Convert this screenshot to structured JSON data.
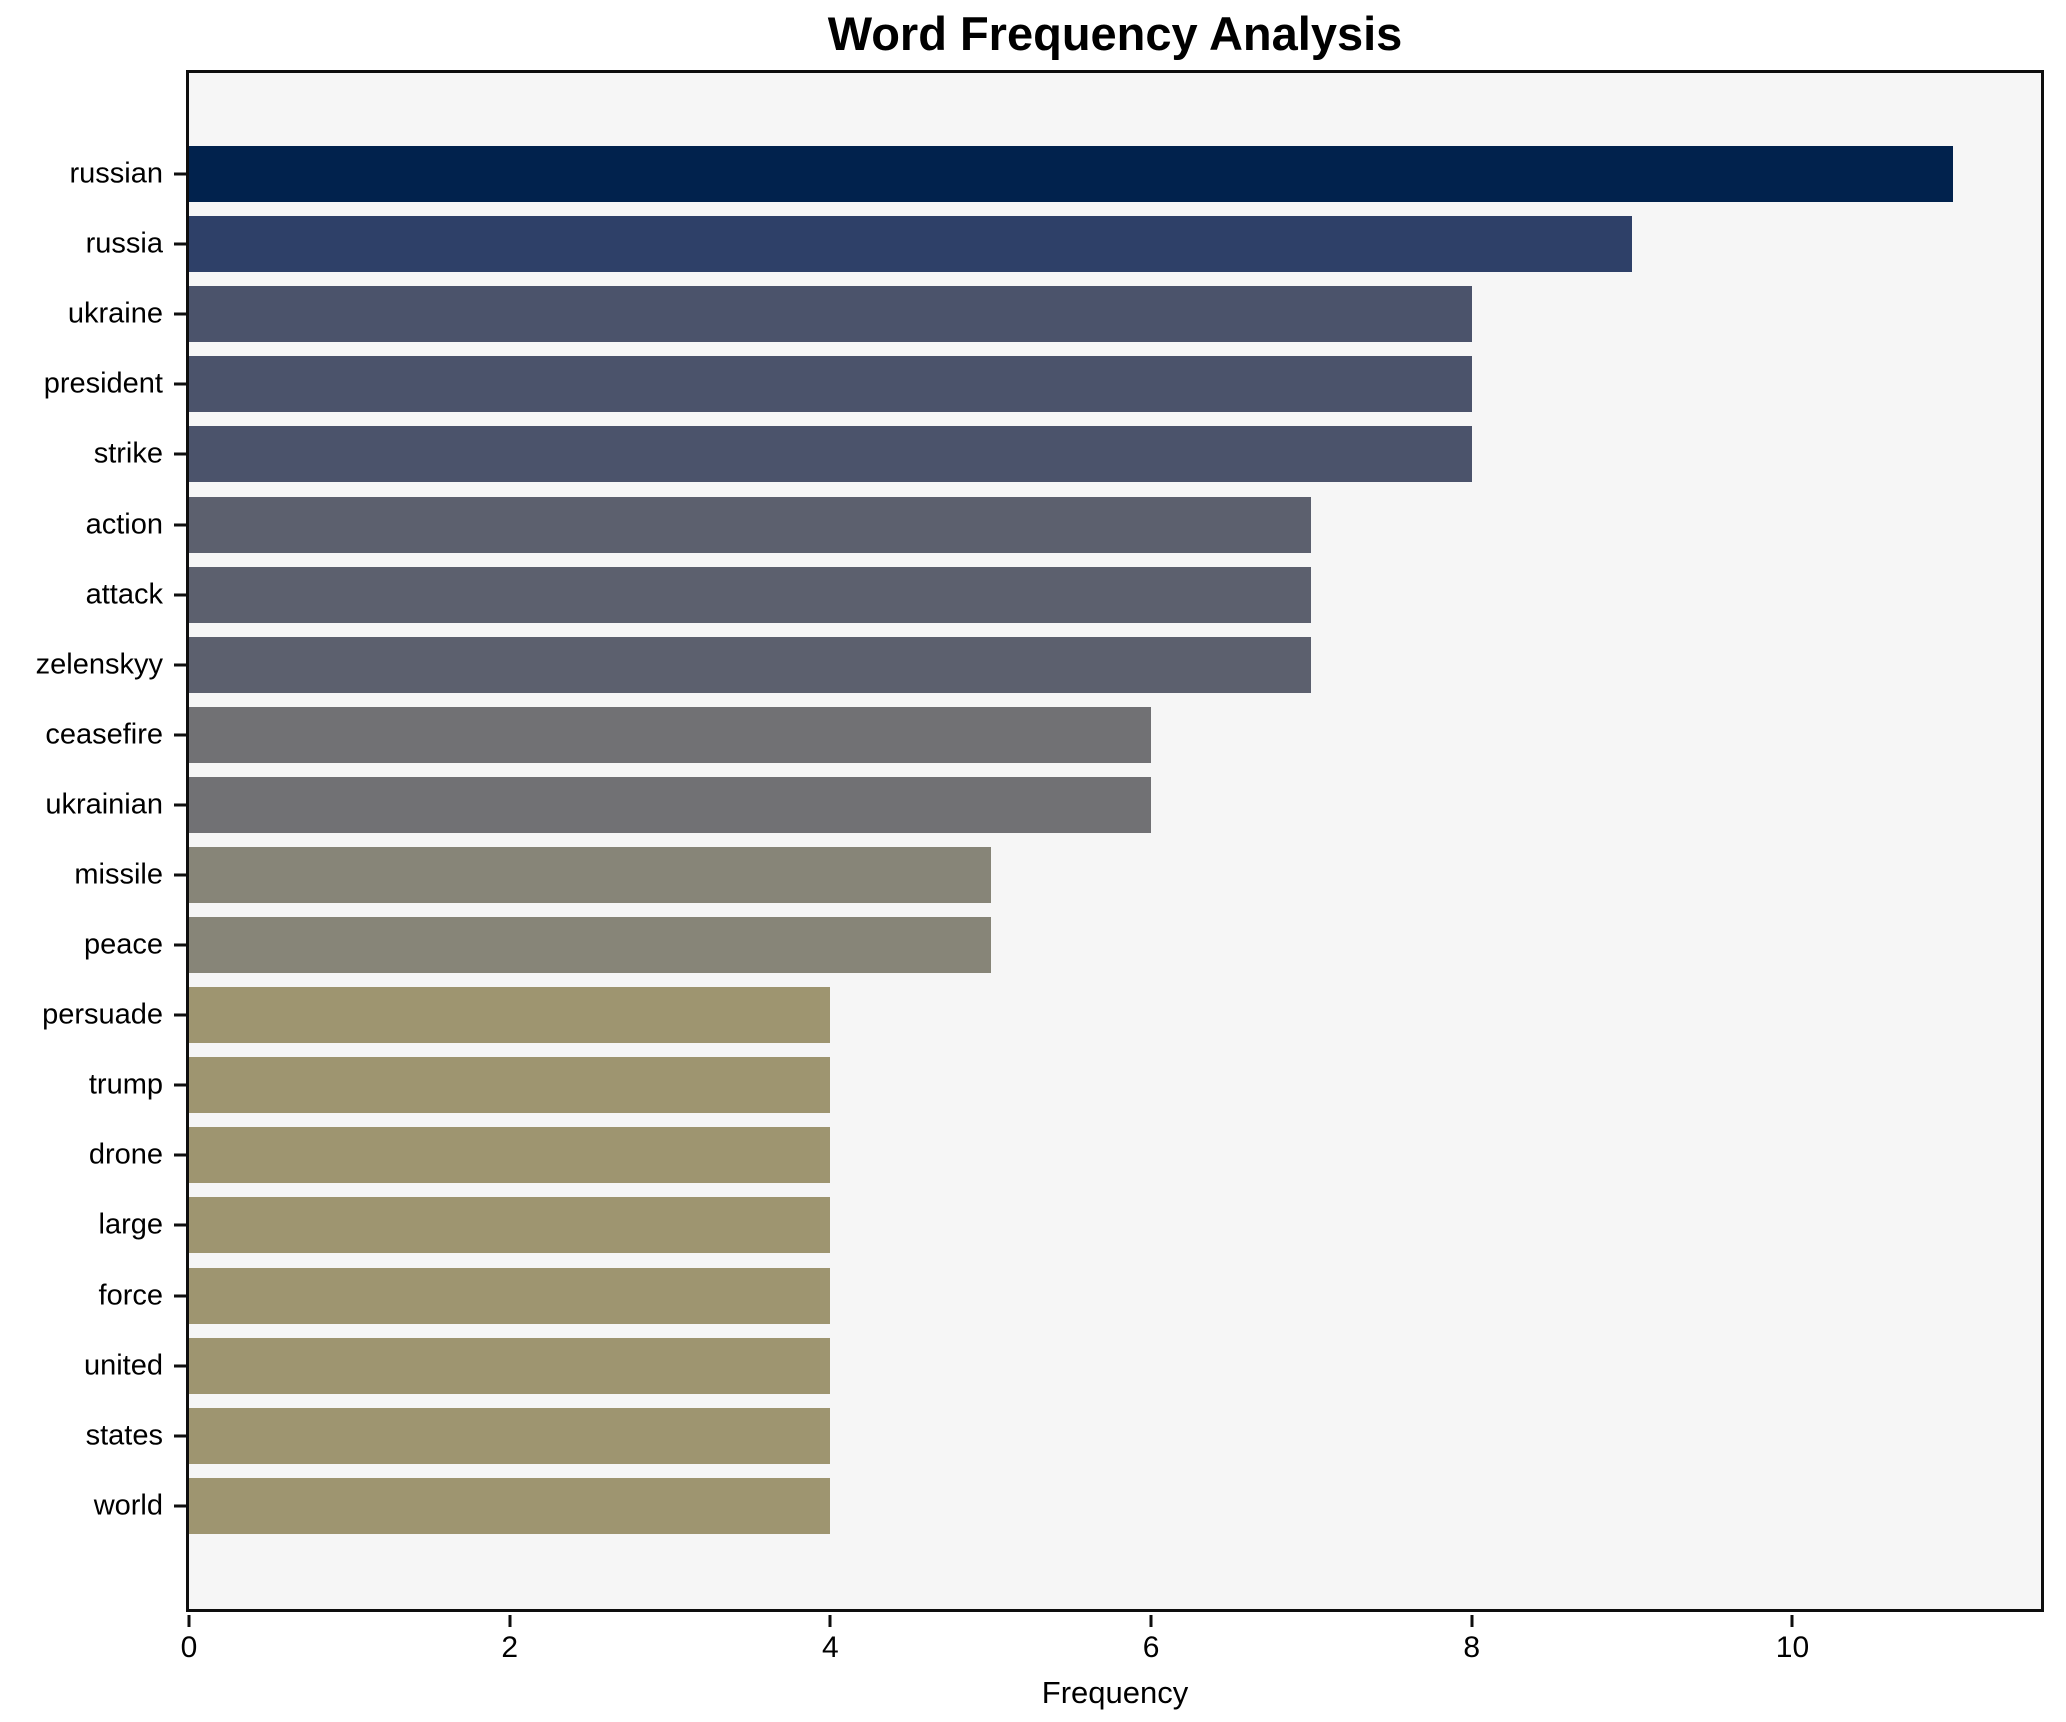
{
  "title": "Word Frequency Analysis",
  "chart_data": {
    "type": "bar",
    "orientation": "horizontal",
    "title": "Word Frequency Analysis",
    "xlabel": "Frequency",
    "ylabel": "",
    "categories": [
      "russian",
      "russia",
      "ukraine",
      "president",
      "strike",
      "action",
      "attack",
      "zelenskyy",
      "ceasefire",
      "ukrainian",
      "missile",
      "peace",
      "persuade",
      "trump",
      "drone",
      "large",
      "force",
      "united",
      "states",
      "world"
    ],
    "values": [
      11,
      9,
      8,
      8,
      8,
      7,
      7,
      7,
      6,
      6,
      5,
      5,
      4,
      4,
      4,
      4,
      4,
      4,
      4,
      4
    ],
    "bar_colors": [
      "#01224d",
      "#2e4068",
      "#4b536b",
      "#4b536b",
      "#4b536b",
      "#5c606e",
      "#5c606e",
      "#5c606e",
      "#717174",
      "#717174",
      "#878578",
      "#878578",
      "#9e9570",
      "#9e9570",
      "#9e9570",
      "#9e9570",
      "#9e9570",
      "#9e9570",
      "#9e9570",
      "#9e9570"
    ],
    "xlim": [
      0,
      11.55
    ],
    "xticks": [
      0,
      2,
      4,
      6,
      8,
      10
    ],
    "grid": false,
    "legend_position": "none",
    "plot_background": "#f6f6f6",
    "figure_background": "#ffffff",
    "spine_color": "#0e0e0e",
    "text_color": "#000000"
  }
}
